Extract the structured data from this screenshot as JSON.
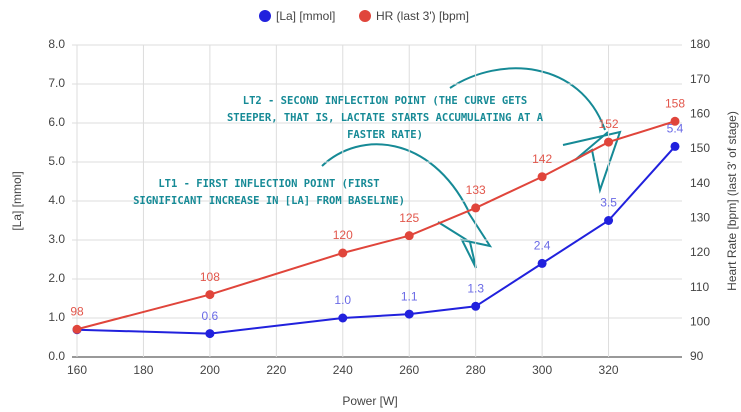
{
  "chart_data": {
    "type": "line",
    "legend": "top",
    "grid": true,
    "x_label": "Power [W]",
    "y_label": "[La] [mmol]",
    "y2_label": "Heart Rate [bpm] (last 3' of stage)",
    "x": [
      160,
      200,
      240,
      260,
      280,
      300,
      320,
      340
    ],
    "xlim": [
      160,
      340
    ],
    "xticks": [
      160,
      180,
      200,
      220,
      240,
      260,
      280,
      300,
      320
    ],
    "ylim": [
      0,
      8
    ],
    "yticks": [
      {
        "value": 0,
        "label": "0.0"
      },
      {
        "value": 1,
        "label": "1.0"
      },
      {
        "value": 2,
        "label": "2.0"
      },
      {
        "value": 3,
        "label": "3.0"
      },
      {
        "value": 4,
        "label": "4.0"
      },
      {
        "value": 5,
        "label": "5.0"
      },
      {
        "value": 6,
        "label": "6.0"
      },
      {
        "value": 7,
        "label": "7.0"
      },
      {
        "value": 8,
        "label": "8.0"
      }
    ],
    "y2lim": [
      90,
      180
    ],
    "y2ticks": [
      90,
      100,
      110,
      120,
      130,
      140,
      150,
      160,
      170,
      180
    ],
    "series": [
      {
        "name": "[La] [mmol]",
        "color": "#2121dd",
        "label_color": "#6a6ae6",
        "axis": "y",
        "values": [
          0.7,
          0.6,
          1.0,
          1.1,
          1.3,
          2.4,
          3.5,
          5.4
        ],
        "value_labels": [
          null,
          "0.6",
          "1.0",
          "1.1",
          "1.3",
          "2.4",
          "3.5",
          "5.4"
        ]
      },
      {
        "name": "HR (last 3') [bpm]",
        "color": "#e0453b",
        "label_color": "#e2574c",
        "axis": "y2",
        "values": [
          98,
          108,
          120,
          125,
          133,
          142,
          152,
          158
        ]
      }
    ],
    "annotations": [
      {
        "lines": [
          "LT2 - SECOND INFLECTION POINT (THE CURVE GETS",
          "STEEPER, THAT IS, LACTATE STARTS ACCUMULATING AT A",
          "FASTER RATE)"
        ]
      },
      {
        "lines": [
          "LT1 - FIRST INFLECTION POINT (FIRST",
          "SIGNIFICANT INCREASE IN [LA] FROM BASELINE)"
        ]
      }
    ]
  }
}
